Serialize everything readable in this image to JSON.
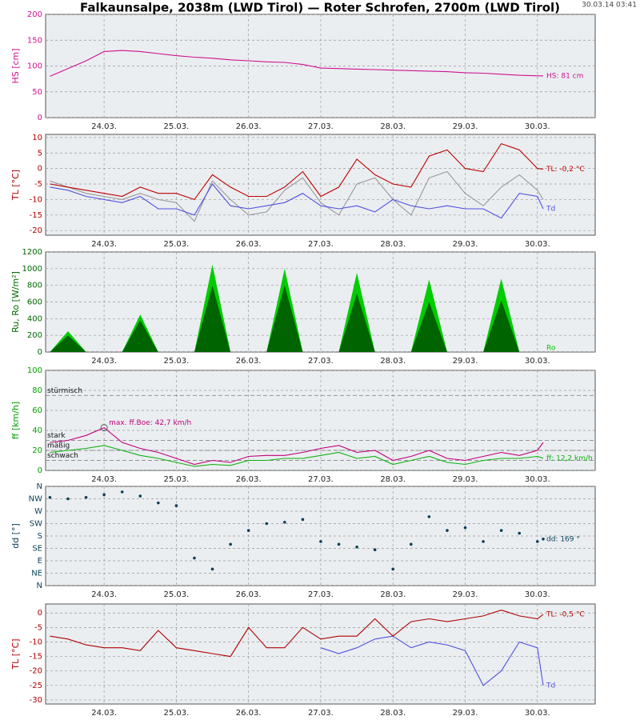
{
  "title": "Falkaunsalpe, 2038m (LWD Tirol) — Roter Schrofen, 2700m (LWD Tirol)",
  "timestamp": "30.03.14 03:41",
  "chart_data": [
    {
      "type": "line",
      "ylabel": "HS [cm]",
      "label_color": "#d0108f",
      "grid": true,
      "x": [
        23.25,
        23.5,
        23.75,
        24,
        24.25,
        24.5,
        24.75,
        25,
        25.25,
        25.5,
        25.75,
        26,
        26.25,
        26.5,
        26.75,
        27,
        27.25,
        27.5,
        27.75,
        28,
        28.25,
        28.5,
        28.75,
        29,
        29.25,
        29.5,
        29.75,
        30,
        30.08
      ],
      "xlim": [
        23.19,
        30.8
      ],
      "xticks": [
        {
          "value": 24,
          "label": "24.03."
        },
        {
          "value": 25,
          "label": "25.03."
        },
        {
          "value": 26,
          "label": "26.03."
        },
        {
          "value": 27,
          "label": "27.03."
        },
        {
          "value": 28,
          "label": "28.03."
        },
        {
          "value": 29,
          "label": "29.03."
        },
        {
          "value": 30,
          "label": "30.03."
        }
      ],
      "ylim": [
        0,
        200
      ],
      "yticks": [
        0,
        50,
        100,
        150,
        200
      ],
      "series": [
        {
          "name": "HS: 81 cm",
          "color": "#d0108f",
          "values": [
            80,
            95,
            110,
            128,
            130,
            128,
            124,
            120,
            117,
            115,
            112,
            110,
            108,
            107,
            103,
            96,
            95,
            94,
            93,
            92,
            91,
            90,
            89,
            87,
            86,
            84,
            82,
            81,
            81
          ]
        }
      ]
    },
    {
      "type": "line",
      "ylabel": "TL [°C]",
      "label_color": "#b00000",
      "grid": true,
      "x": [
        23.25,
        23.5,
        23.75,
        24,
        24.25,
        24.5,
        24.75,
        25,
        25.25,
        25.5,
        25.75,
        26,
        26.25,
        26.5,
        26.75,
        27,
        27.25,
        27.5,
        27.75,
        28,
        28.25,
        28.5,
        28.75,
        29,
        29.25,
        29.5,
        29.75,
        30,
        30.08
      ],
      "xlim": [
        23.19,
        30.8
      ],
      "xticks": [
        {
          "value": 24,
          "label": "24.03."
        },
        {
          "value": 25,
          "label": "25.03."
        },
        {
          "value": 26,
          "label": "26.03."
        },
        {
          "value": 27,
          "label": "27.03."
        },
        {
          "value": 28,
          "label": "28.03."
        },
        {
          "value": 29,
          "label": "29.03."
        },
        {
          "value": 30,
          "label": "30.03."
        }
      ],
      "ylim": [
        -21.5,
        11
      ],
      "yticks": [
        -20,
        -15,
        -10,
        -5,
        0,
        5,
        10
      ],
      "series": [
        {
          "color": "#999999",
          "values": [
            -4,
            -6,
            -8,
            -9,
            -10,
            -8,
            -10,
            -11,
            -17,
            -4,
            -10,
            -15,
            -14,
            -7,
            -3,
            -11,
            -15,
            -5,
            -3,
            -10,
            -15,
            -3,
            -1,
            -8,
            -12,
            -6,
            -2,
            -7,
            -10
          ]
        },
        {
          "name": "Td",
          "color": "#5050e0",
          "values": [
            -6,
            -7,
            -9,
            -10,
            -11,
            -9,
            -13,
            -13,
            -15,
            -5,
            -12,
            -13,
            -12,
            -11,
            -8,
            -12,
            -13,
            -12,
            -14,
            -10,
            -12,
            -13,
            -12,
            -13,
            -13,
            -16,
            -8,
            -9,
            -13
          ]
        },
        {
          "name": "TL: -0,2 °C",
          "color": "#c00000",
          "values": [
            -5,
            -6,
            -7,
            -8,
            -9,
            -6,
            -8,
            -8,
            -10,
            -2,
            -6,
            -9,
            -9,
            -6,
            -1,
            -9,
            -6,
            3,
            -2,
            -5,
            -6,
            4,
            6,
            0,
            -1,
            8,
            6,
            0,
            -0.2
          ]
        }
      ]
    },
    {
      "type": "area",
      "ylabel": "Ru, Ro [W/m²]",
      "label_color": "#006600",
      "grid": true,
      "x": [
        23.25,
        23.5,
        23.75,
        24,
        24.25,
        24.5,
        24.75,
        25,
        25.25,
        25.5,
        25.75,
        26,
        26.25,
        26.5,
        26.75,
        27,
        27.25,
        27.5,
        27.75,
        28,
        28.25,
        28.5,
        28.75,
        29,
        29.25,
        29.5,
        29.75,
        30,
        30.08
      ],
      "xlim": [
        23.19,
        30.8
      ],
      "xticks": [
        {
          "value": 24,
          "label": "24.03."
        },
        {
          "value": 25,
          "label": "25.03."
        },
        {
          "value": 26,
          "label": "26.03."
        },
        {
          "value": 27,
          "label": "27.03."
        },
        {
          "value": 28,
          "label": "28.03."
        },
        {
          "value": 29,
          "label": "29.03."
        },
        {
          "value": 30,
          "label": "30.03."
        }
      ],
      "ylim": [
        0,
        1200
      ],
      "yticks": [
        0,
        200,
        400,
        600,
        800,
        1000,
        1200
      ],
      "series": [
        {
          "name": "Ro",
          "color": "#00cc00",
          "values": [
            0,
            250,
            0,
            0,
            0,
            450,
            0,
            0,
            0,
            1050,
            0,
            0,
            0,
            1000,
            0,
            0,
            0,
            950,
            0,
            0,
            0,
            870,
            0,
            0,
            0,
            880,
            0,
            0,
            0
          ]
        },
        {
          "color": "#006400",
          "values": [
            0,
            200,
            0,
            0,
            0,
            380,
            0,
            0,
            0,
            800,
            0,
            0,
            0,
            800,
            0,
            0,
            0,
            700,
            0,
            0,
            0,
            600,
            0,
            0,
            0,
            620,
            0,
            0,
            0
          ]
        }
      ]
    },
    {
      "type": "line",
      "ylabel": "ff [km/h]",
      "label_color": "#00a000",
      "grid": true,
      "x": [
        23.25,
        23.5,
        23.75,
        24,
        24.25,
        24.5,
        24.75,
        25,
        25.25,
        25.5,
        25.75,
        26,
        26.25,
        26.5,
        26.75,
        27,
        27.25,
        27.5,
        27.75,
        28,
        28.25,
        28.5,
        28.75,
        29,
        29.25,
        29.5,
        29.75,
        30,
        30.08
      ],
      "xlim": [
        23.19,
        30.8
      ],
      "xticks": [
        {
          "value": 24,
          "label": "24.03."
        },
        {
          "value": 25,
          "label": "25.03."
        },
        {
          "value": 26,
          "label": "26.03."
        },
        {
          "value": 27,
          "label": "27.03."
        },
        {
          "value": 28,
          "label": "28.03."
        },
        {
          "value": 29,
          "label": "29.03."
        },
        {
          "value": 30,
          "label": "30.03."
        }
      ],
      "ylim": [
        0,
        100
      ],
      "yticks": [
        0,
        20,
        40,
        60,
        80,
        100
      ],
      "levels": [
        {
          "value": 75,
          "label": "stürmisch"
        },
        {
          "value": 30,
          "label": "stark"
        },
        {
          "value": 20,
          "label": "mäßig"
        },
        {
          "value": 10,
          "label": "schwach"
        }
      ],
      "annotation": "max. ff.Boe: 42,7 km/h",
      "series": [
        {
          "color": "#c0007a",
          "values": [
            28,
            30,
            35,
            42.7,
            28,
            22,
            18,
            12,
            6,
            10,
            8,
            14,
            15,
            15,
            18,
            22,
            25,
            18,
            20,
            10,
            14,
            20,
            12,
            10,
            14,
            18,
            15,
            20,
            28
          ]
        },
        {
          "name": "ff: 12,2 km/h",
          "color": "#10b010",
          "values": [
            18,
            20,
            22,
            25,
            20,
            15,
            12,
            8,
            4,
            6,
            5,
            10,
            10,
            12,
            12,
            15,
            18,
            12,
            14,
            6,
            10,
            14,
            8,
            6,
            10,
            12,
            12,
            14,
            12.2
          ]
        }
      ]
    },
    {
      "type": "scatter",
      "ylabel": "dd [°]",
      "label_color": "#0a3f55",
      "grid": true,
      "x": [
        23.25,
        23.5,
        23.75,
        24,
        24.25,
        24.5,
        24.75,
        25,
        25.25,
        25.5,
        25.75,
        26,
        26.25,
        26.5,
        26.75,
        27,
        27.25,
        27.5,
        27.75,
        28,
        28.25,
        28.5,
        28.75,
        29,
        29.25,
        29.5,
        29.75,
        30,
        30.08
      ],
      "xlim": [
        23.19,
        30.8
      ],
      "xticks": [
        {
          "value": 24,
          "label": "24.03."
        },
        {
          "value": 25,
          "label": "25.03."
        },
        {
          "value": 26,
          "label": "26.03."
        },
        {
          "value": 27,
          "label": "27.03."
        },
        {
          "value": 28,
          "label": "28.03."
        },
        {
          "value": 29,
          "label": "29.03."
        },
        {
          "value": 30,
          "label": "30.03."
        }
      ],
      "ylim": [
        0,
        360
      ],
      "yticks": [
        {
          "value": 0,
          "label": "N"
        },
        {
          "value": 45,
          "label": "NE"
        },
        {
          "value": 90,
          "label": "E"
        },
        {
          "value": 135,
          "label": "SE"
        },
        {
          "value": 180,
          "label": "S"
        },
        {
          "value": 225,
          "label": "SW"
        },
        {
          "value": 270,
          "label": "W"
        },
        {
          "value": 315,
          "label": "NW"
        },
        {
          "value": 360,
          "label": "N"
        }
      ],
      "series": [
        {
          "name": "dd: 169 °",
          "color": "#0a3f55",
          "values": [
            320,
            315,
            320,
            330,
            340,
            325,
            300,
            290,
            100,
            60,
            150,
            200,
            225,
            230,
            240,
            160,
            150,
            140,
            130,
            60,
            150,
            250,
            200,
            210,
            160,
            200,
            190,
            160,
            169
          ]
        }
      ]
    },
    {
      "type": "line",
      "ylabel": "TL [°C]",
      "label_color": "#b00000",
      "grid": true,
      "x": [
        23.25,
        23.5,
        23.75,
        24,
        24.25,
        24.5,
        24.75,
        25,
        25.25,
        25.5,
        25.75,
        26,
        26.25,
        26.5,
        26.75,
        27,
        27.25,
        27.5,
        27.75,
        28,
        28.25,
        28.5,
        28.75,
        29,
        29.25,
        29.5,
        29.75,
        30,
        30.08
      ],
      "xlim": [
        23.19,
        30.8
      ],
      "xticks": [
        {
          "value": 24,
          "label": "24.03."
        },
        {
          "value": 25,
          "label": "25.03."
        },
        {
          "value": 26,
          "label": "26.03."
        },
        {
          "value": 27,
          "label": "27.03."
        },
        {
          "value": 28,
          "label": "28.03."
        },
        {
          "value": 29,
          "label": "29.03."
        },
        {
          "value": 30,
          "label": "30.03."
        }
      ],
      "ylim": [
        -31.4,
        3.1
      ],
      "yticks": [
        -30,
        -25,
        -20,
        -15,
        -10,
        -5,
        0
      ],
      "series": [
        {
          "name": "Td",
          "color": "#5050e0",
          "values": [
            null,
            null,
            null,
            null,
            null,
            null,
            null,
            null,
            null,
            null,
            null,
            null,
            null,
            null,
            null,
            -12,
            -14,
            -12,
            -9,
            -8,
            -12,
            -10,
            -11,
            -13,
            -25,
            -20,
            -10,
            -12,
            -25
          ]
        },
        {
          "name": "TL: -0,5 °C",
          "color": "#b00000",
          "values": [
            -8,
            -9,
            -11,
            -12,
            -12,
            -13,
            -6,
            -12,
            -13,
            -14,
            -15,
            -5,
            -12,
            -12,
            -5,
            -9,
            -8,
            -8,
            -2,
            -8,
            -3,
            -2,
            -3,
            -2,
            -1,
            1,
            -1,
            -2,
            -0.5
          ]
        }
      ]
    }
  ]
}
